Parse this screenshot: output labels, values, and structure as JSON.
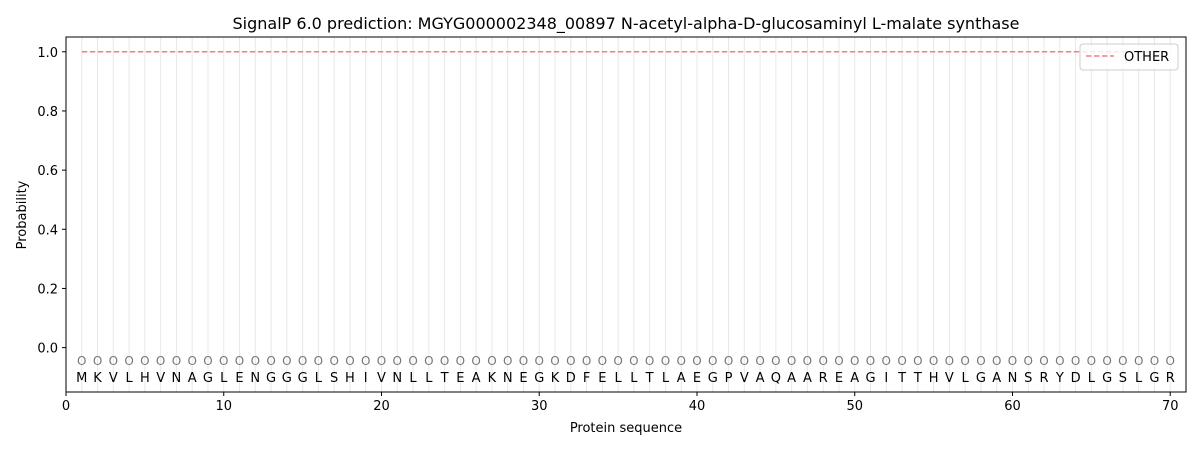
{
  "chart_data": {
    "type": "line",
    "title": "SignalP 6.0 prediction: MGYG000002348_00897 N-acetyl-alpha-D-glucosaminyl L-malate synthase",
    "xlabel": "Protein sequence",
    "ylabel": "Probability",
    "xlim": [
      0,
      71
    ],
    "ylim": [
      -0.15,
      1.05
    ],
    "xticks": [
      0,
      10,
      20,
      30,
      40,
      50,
      60,
      70
    ],
    "yticks": [
      0.0,
      0.2,
      0.4,
      0.6,
      0.8,
      1.0
    ],
    "ytick_labels": [
      "0.0",
      "0.2",
      "0.4",
      "0.6",
      "0.8",
      "1.0"
    ],
    "legend_position": "top-right",
    "sequence": "MKVLHVNAGLENGGGLSHIVNLLTEAKNEGKDFELLTLAEGPVAQAAREAGITTHVLGANSRYDLGSLGR",
    "position_labels": "OOOOOOOOOOOOOOOOOOOOOOOOOOOOOOOOOOOOOOOOOOOOOOOOOOOOOOOOOOOOOOOOOOOOOO",
    "series": [
      {
        "name": "OTHER",
        "color": "#f08080",
        "style": "dashed",
        "x_start": 1,
        "x_end": 70,
        "value": 1.0
      }
    ]
  }
}
